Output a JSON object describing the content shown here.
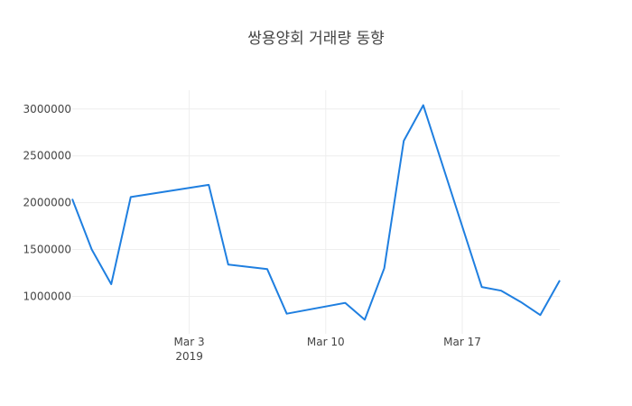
{
  "chart_data": {
    "type": "line",
    "title": "쌍용양회 거래량 동향",
    "xlabel": "",
    "ylabel": "",
    "x_range": [
      "2019-02-25",
      "2019-03-22"
    ],
    "y_range": [
      600000,
      3200000
    ],
    "grid": true,
    "legend": "none",
    "line_color": "#1f7fe0",
    "x_ticks": [
      {
        "date": "2019-03-03",
        "label": "Mar 3",
        "sublabel": "2019"
      },
      {
        "date": "2019-03-10",
        "label": "Mar 10",
        "sublabel": ""
      },
      {
        "date": "2019-03-17",
        "label": "Mar 17",
        "sublabel": ""
      }
    ],
    "y_ticks": [
      {
        "value": 1000000,
        "label": "1000000"
      },
      {
        "value": 1500000,
        "label": "1500000"
      },
      {
        "value": 2000000,
        "label": "2000000"
      },
      {
        "value": 2500000,
        "label": "2500000"
      },
      {
        "value": 3000000,
        "label": "3000000"
      }
    ],
    "series": [
      {
        "x": [
          "2019-02-25",
          "2019-02-26",
          "2019-02-27",
          "2019-02-28",
          "2019-03-04",
          "2019-03-05",
          "2019-03-07",
          "2019-03-08",
          "2019-03-11",
          "2019-03-12",
          "2019-03-13",
          "2019-03-14",
          "2019-03-15",
          "2019-03-18",
          "2019-03-19",
          "2019-03-20",
          "2019-03-21",
          "2019-03-22"
        ],
        "y": [
          2040000,
          1500000,
          1130000,
          2060000,
          2190000,
          1340000,
          1290000,
          815000,
          930000,
          750000,
          1300000,
          2660000,
          3040000,
          1100000,
          1060000,
          940000,
          800000,
          1170000
        ]
      }
    ]
  }
}
